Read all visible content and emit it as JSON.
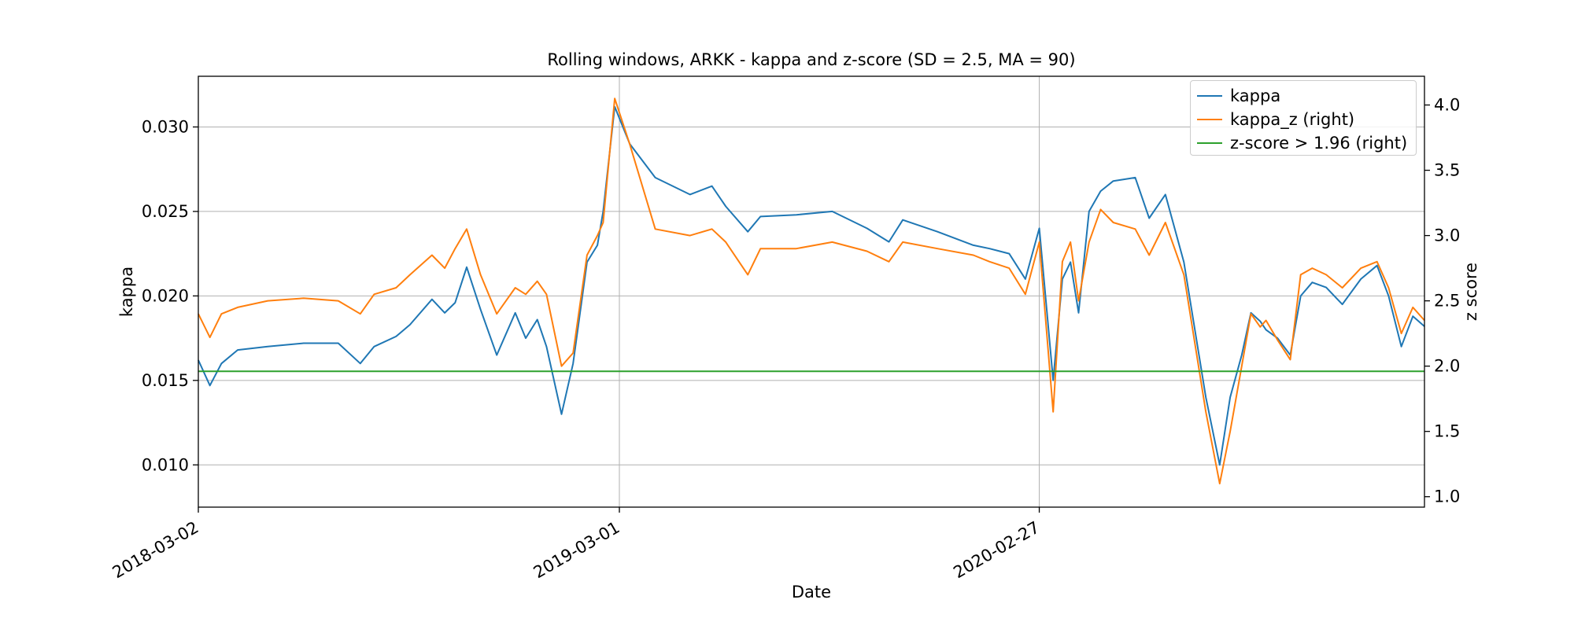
{
  "chart_data": {
    "type": "line",
    "title": "Rolling windows, ARKK - kappa and z-score (SD = 2.5, MA = 90)",
    "xlabel": "Date",
    "ylabel": "kappa",
    "ylabel_right": "z score",
    "x_tick_labels": [
      "2018-03-02",
      "2019-03-01",
      "2020-02-27"
    ],
    "x_tick_dates": [
      "2018-03-02",
      "2019-03-01",
      "2020-02-27"
    ],
    "xlim": [
      "2018-03-02",
      "2021-01-25"
    ],
    "ylim": [
      0.0075,
      0.033
    ],
    "ylim_right": [
      0.92,
      4.22
    ],
    "y_ticks": [
      "0.010",
      "0.015",
      "0.020",
      "0.025",
      "0.030"
    ],
    "y_ticks_right": [
      "1.0",
      "1.5",
      "2.0",
      "2.5",
      "3.0",
      "3.5",
      "4.0"
    ],
    "grid": true,
    "legend_position": "top-right",
    "series": [
      {
        "name": "kappa",
        "axis": "left",
        "color": "#1f77b4",
        "x": [
          "2018-03-02",
          "2018-03-12",
          "2018-03-22",
          "2018-04-05",
          "2018-05-01",
          "2018-06-01",
          "2018-07-01",
          "2018-07-20",
          "2018-08-01",
          "2018-08-20",
          "2018-09-01",
          "2018-09-20",
          "2018-10-01",
          "2018-10-10",
          "2018-10-20",
          "2018-11-01",
          "2018-11-15",
          "2018-12-01",
          "2018-12-10",
          "2018-12-20",
          "2018-12-28",
          "2019-01-10",
          "2019-01-20",
          "2019-02-01",
          "2019-02-10",
          "2019-02-15",
          "2019-02-25",
          "2019-03-10",
          "2019-04-01",
          "2019-05-01",
          "2019-05-20",
          "2019-06-01",
          "2019-06-20",
          "2019-07-01",
          "2019-08-01",
          "2019-09-01",
          "2019-10-01",
          "2019-10-20",
          "2019-11-01",
          "2019-12-01",
          "2020-01-01",
          "2020-01-15",
          "2020-02-01",
          "2020-02-15",
          "2020-02-27",
          "2020-03-10",
          "2020-03-18",
          "2020-03-25",
          "2020-04-01",
          "2020-04-10",
          "2020-04-20",
          "2020-05-01",
          "2020-05-20",
          "2020-06-01",
          "2020-06-15",
          "2020-07-01",
          "2020-07-20",
          "2020-08-01",
          "2020-08-10",
          "2020-08-20",
          "2020-08-28",
          "2020-09-05",
          "2020-09-10",
          "2020-09-20",
          "2020-10-01",
          "2020-10-10",
          "2020-10-20",
          "2020-11-01",
          "2020-11-15",
          "2020-12-01",
          "2020-12-15",
          "2020-12-25",
          "2021-01-05",
          "2021-01-15",
          "2021-01-25"
        ],
        "y": [
          0.0162,
          0.0147,
          0.016,
          0.0168,
          0.017,
          0.0172,
          0.0172,
          0.016,
          0.017,
          0.0176,
          0.0183,
          0.0198,
          0.019,
          0.0196,
          0.0217,
          0.0192,
          0.0165,
          0.019,
          0.0175,
          0.0186,
          0.017,
          0.013,
          0.016,
          0.022,
          0.023,
          0.025,
          0.0312,
          0.029,
          0.027,
          0.026,
          0.0265,
          0.0253,
          0.0238,
          0.0247,
          0.0248,
          0.025,
          0.024,
          0.0232,
          0.0245,
          0.0238,
          0.023,
          0.0228,
          0.0225,
          0.021,
          0.024,
          0.015,
          0.021,
          0.022,
          0.019,
          0.025,
          0.0262,
          0.0268,
          0.027,
          0.0246,
          0.026,
          0.022,
          0.014,
          0.01,
          0.014,
          0.0165,
          0.019,
          0.0185,
          0.018,
          0.0175,
          0.0165,
          0.02,
          0.0208,
          0.0205,
          0.0195,
          0.021,
          0.0218,
          0.02,
          0.017,
          0.0188,
          0.0182
        ]
      },
      {
        "name": "kappa_z (right)",
        "axis": "right",
        "color": "#ff7f0e",
        "x": [
          "2018-03-02",
          "2018-03-12",
          "2018-03-22",
          "2018-04-05",
          "2018-05-01",
          "2018-06-01",
          "2018-07-01",
          "2018-07-20",
          "2018-08-01",
          "2018-08-20",
          "2018-09-01",
          "2018-09-20",
          "2018-10-01",
          "2018-10-10",
          "2018-10-20",
          "2018-11-01",
          "2018-11-15",
          "2018-12-01",
          "2018-12-10",
          "2018-12-20",
          "2018-12-28",
          "2019-01-10",
          "2019-01-20",
          "2019-02-01",
          "2019-02-10",
          "2019-02-15",
          "2019-02-25",
          "2019-03-10",
          "2019-04-01",
          "2019-05-01",
          "2019-05-20",
          "2019-06-01",
          "2019-06-20",
          "2019-07-01",
          "2019-08-01",
          "2019-09-01",
          "2019-10-01",
          "2019-10-20",
          "2019-11-01",
          "2019-12-01",
          "2020-01-01",
          "2020-01-15",
          "2020-02-01",
          "2020-02-15",
          "2020-02-27",
          "2020-03-10",
          "2020-03-18",
          "2020-03-25",
          "2020-04-01",
          "2020-04-10",
          "2020-04-20",
          "2020-05-01",
          "2020-05-20",
          "2020-06-01",
          "2020-06-15",
          "2020-07-01",
          "2020-07-20",
          "2020-08-01",
          "2020-08-10",
          "2020-08-20",
          "2020-08-28",
          "2020-09-05",
          "2020-09-10",
          "2020-09-20",
          "2020-10-01",
          "2020-10-10",
          "2020-10-20",
          "2020-11-01",
          "2020-11-15",
          "2020-12-01",
          "2020-12-15",
          "2020-12-25",
          "2021-01-05",
          "2021-01-15",
          "2021-01-25"
        ],
        "y": [
          2.4,
          2.22,
          2.4,
          2.45,
          2.5,
          2.52,
          2.5,
          2.4,
          2.55,
          2.6,
          2.7,
          2.85,
          2.75,
          2.9,
          3.05,
          2.7,
          2.4,
          2.6,
          2.55,
          2.65,
          2.55,
          2.0,
          2.1,
          2.85,
          3.0,
          3.1,
          4.05,
          3.7,
          3.05,
          3.0,
          3.05,
          2.95,
          2.7,
          2.9,
          2.9,
          2.95,
          2.88,
          2.8,
          2.95,
          2.9,
          2.85,
          2.8,
          2.75,
          2.55,
          2.95,
          1.65,
          2.8,
          2.95,
          2.5,
          2.95,
          3.2,
          3.1,
          3.05,
          2.85,
          3.1,
          2.7,
          1.65,
          1.1,
          1.5,
          2.0,
          2.4,
          2.3,
          2.35,
          2.2,
          2.05,
          2.7,
          2.75,
          2.7,
          2.6,
          2.75,
          2.8,
          2.6,
          2.25,
          2.45,
          2.35
        ]
      },
      {
        "name": "z-score > 1.96 (right)",
        "axis": "right",
        "color": "#2ca02c",
        "x": [
          "2018-03-02",
          "2021-01-25"
        ],
        "y": [
          1.96,
          1.96
        ]
      }
    ]
  }
}
